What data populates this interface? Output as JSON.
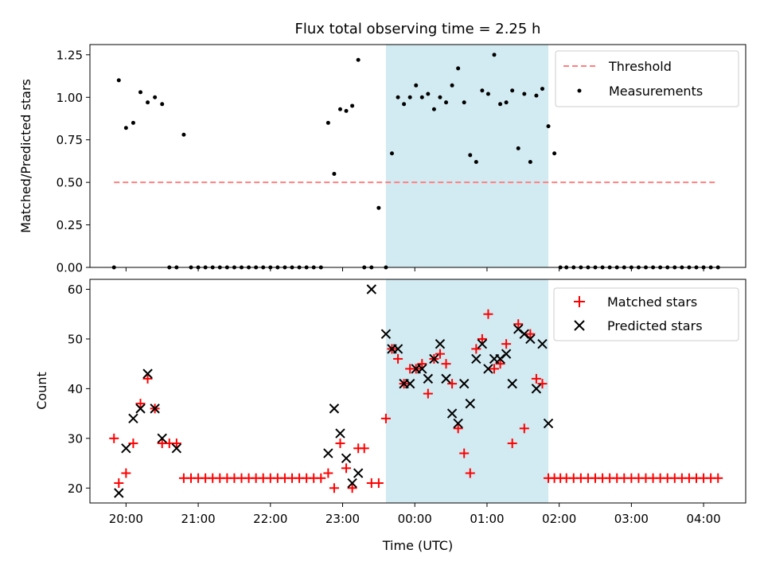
{
  "chart_data": [
    {
      "type": "scatter",
      "title": "Flux total observing time = 2.25 h",
      "xlabel": "",
      "ylabel": "Matched/Predicted stars",
      "xlim": [
        "19:30",
        "04:35"
      ],
      "ylim": [
        0.0,
        1.31
      ],
      "yticks": [
        "0.00",
        "0.25",
        "0.50",
        "0.75",
        "1.00",
        "1.25"
      ],
      "xticks": [
        "20:00",
        "21:00",
        "22:00",
        "23:00",
        "00:00",
        "01:00",
        "02:00",
        "03:00",
        "04:00"
      ],
      "shaded_interval": [
        "23:36",
        "01:51"
      ],
      "legend_position": "upper right",
      "series": [
        {
          "name": "Threshold",
          "style": "dashed-line",
          "color": "#ff7f7f",
          "x": [
            "19:50",
            "04:12"
          ],
          "y": [
            0.5,
            0.5
          ]
        },
        {
          "name": "Measurements",
          "style": "points",
          "color": "#000000",
          "x": [
            "19:50",
            "19:54",
            "20:00",
            "20:06",
            "20:12",
            "20:18",
            "20:24",
            "20:30",
            "20:36",
            "20:42",
            "20:48",
            "20:54",
            "21:00",
            "21:06",
            "21:12",
            "21:18",
            "21:24",
            "21:30",
            "21:36",
            "21:42",
            "21:48",
            "21:54",
            "22:00",
            "22:06",
            "22:12",
            "22:18",
            "22:24",
            "22:30",
            "22:36",
            "22:42",
            "22:48",
            "22:53",
            "22:58",
            "23:03",
            "23:08",
            "23:13",
            "23:18",
            "23:24",
            "23:30",
            "23:36",
            "23:41",
            "23:46",
            "23:51",
            "23:56",
            "00:01",
            "00:06",
            "00:11",
            "00:16",
            "00:21",
            "00:26",
            "00:31",
            "00:36",
            "00:41",
            "00:46",
            "00:51",
            "00:56",
            "01:01",
            "01:06",
            "01:11",
            "01:16",
            "01:21",
            "01:26",
            "01:31",
            "01:36",
            "01:41",
            "01:46",
            "01:51",
            "01:56",
            "02:01",
            "02:06",
            "02:12",
            "02:18",
            "02:24",
            "02:30",
            "02:36",
            "02:42",
            "02:48",
            "02:54",
            "03:00",
            "03:06",
            "03:12",
            "03:18",
            "03:24",
            "03:30",
            "03:36",
            "03:42",
            "03:48",
            "03:54",
            "04:00",
            "04:06",
            "04:12"
          ],
          "y": [
            0.0,
            1.1,
            0.82,
            0.85,
            1.03,
            0.97,
            1.0,
            0.96,
            0.0,
            0.0,
            0.78,
            0.0,
            0.0,
            0.0,
            0.0,
            0.0,
            0.0,
            0.0,
            0.0,
            0.0,
            0.0,
            0.0,
            0.0,
            0.0,
            0.0,
            0.0,
            0.0,
            0.0,
            0.0,
            0.0,
            0.85,
            0.55,
            0.93,
            0.92,
            0.95,
            1.22,
            0.0,
            0.0,
            0.35,
            0.0,
            0.67,
            1.0,
            0.96,
            1.0,
            1.07,
            1.0,
            1.02,
            0.93,
            1.0,
            0.97,
            1.07,
            1.17,
            0.97,
            0.66,
            0.62,
            1.04,
            1.02,
            1.25,
            0.96,
            0.97,
            1.04,
            0.7,
            1.02,
            0.62,
            1.01,
            1.05,
            0.83,
            0.67,
            0.0,
            0.0,
            0.0,
            0.0,
            0.0,
            0.0,
            0.0,
            0.0,
            0.0,
            0.0,
            0.0,
            0.0,
            0.0,
            0.0,
            0.0,
            0.0,
            0.0,
            0.0,
            0.0,
            0.0,
            0.0,
            0.0,
            0.0
          ]
        }
      ]
    },
    {
      "type": "scatter",
      "title": "",
      "xlabel": "Time (UTC)",
      "ylabel": "Count",
      "xlim": [
        "19:30",
        "04:35"
      ],
      "ylim": [
        17,
        62
      ],
      "yticks": [
        "20",
        "30",
        "40",
        "50",
        "60"
      ],
      "xticks": [
        "20:00",
        "21:00",
        "22:00",
        "23:00",
        "00:00",
        "01:00",
        "02:00",
        "03:00",
        "04:00"
      ],
      "shaded_interval": [
        "23:36",
        "01:51"
      ],
      "legend_position": "upper right",
      "series": [
        {
          "name": "Matched stars",
          "style": "plus",
          "color": "#ff0000",
          "x": [
            "19:50",
            "19:54",
            "20:00",
            "20:06",
            "20:12",
            "20:18",
            "20:24",
            "20:30",
            "20:36",
            "20:42",
            "20:48",
            "20:54",
            "21:00",
            "21:06",
            "21:12",
            "21:18",
            "21:24",
            "21:30",
            "21:36",
            "21:42",
            "21:48",
            "21:54",
            "22:00",
            "22:06",
            "22:12",
            "22:18",
            "22:24",
            "22:30",
            "22:36",
            "22:42",
            "22:48",
            "22:53",
            "22:58",
            "23:03",
            "23:08",
            "23:13",
            "23:18",
            "23:24",
            "23:30",
            "23:36",
            "23:41",
            "23:46",
            "23:51",
            "23:56",
            "00:01",
            "00:06",
            "00:11",
            "00:16",
            "00:21",
            "00:26",
            "00:31",
            "00:36",
            "00:41",
            "00:46",
            "00:51",
            "00:56",
            "01:01",
            "01:06",
            "01:11",
            "01:16",
            "01:21",
            "01:26",
            "01:31",
            "01:36",
            "01:41",
            "01:46",
            "01:51",
            "01:56",
            "02:01",
            "02:06",
            "02:12",
            "02:18",
            "02:24",
            "02:30",
            "02:36",
            "02:42",
            "02:48",
            "02:54",
            "03:00",
            "03:06",
            "03:12",
            "03:18",
            "03:24",
            "03:30",
            "03:36",
            "03:42",
            "03:48",
            "03:54",
            "04:00",
            "04:06",
            "04:12"
          ],
          "y": [
            30,
            21,
            23,
            29,
            37,
            42,
            36,
            29,
            29,
            29,
            22,
            22,
            22,
            22,
            22,
            22,
            22,
            22,
            22,
            22,
            22,
            22,
            22,
            22,
            22,
            22,
            22,
            22,
            22,
            22,
            23,
            20,
            29,
            24,
            20,
            28,
            28,
            21,
            21,
            34,
            48,
            46,
            41,
            44,
            44,
            45,
            39,
            46,
            47,
            45,
            41,
            32,
            27,
            23,
            48,
            50,
            55,
            44,
            45,
            49,
            29,
            53,
            32,
            51,
            42,
            41,
            22,
            22,
            22,
            22,
            22,
            22,
            22,
            22,
            22,
            22,
            22,
            22,
            22,
            22,
            22,
            22,
            22,
            22,
            22,
            22,
            22,
            22,
            22,
            22,
            22
          ]
        },
        {
          "name": "Predicted stars",
          "style": "cross",
          "color": "#000000",
          "x": [
            "19:54",
            "20:00",
            "20:06",
            "20:12",
            "20:18",
            "20:24",
            "20:30",
            "20:42",
            "22:48",
            "22:53",
            "22:58",
            "23:03",
            "23:08",
            "23:13",
            "23:24",
            "23:36",
            "23:41",
            "23:46",
            "23:51",
            "23:56",
            "00:01",
            "00:06",
            "00:11",
            "00:16",
            "00:21",
            "00:26",
            "00:31",
            "00:36",
            "00:41",
            "00:46",
            "00:51",
            "00:56",
            "01:01",
            "01:06",
            "01:11",
            "01:16",
            "01:21",
            "01:26",
            "01:31",
            "01:36",
            "01:41",
            "01:46",
            "01:51"
          ],
          "y": [
            19,
            28,
            34,
            36,
            43,
            36,
            30,
            28,
            27,
            36,
            31,
            26,
            21,
            23,
            60,
            51,
            48,
            48,
            41,
            41,
            44,
            44,
            42,
            46,
            49,
            42,
            35,
            33,
            41,
            37,
            46,
            49,
            44,
            46,
            46,
            47,
            41,
            52,
            51,
            50,
            40,
            49,
            33
          ]
        }
      ]
    }
  ]
}
